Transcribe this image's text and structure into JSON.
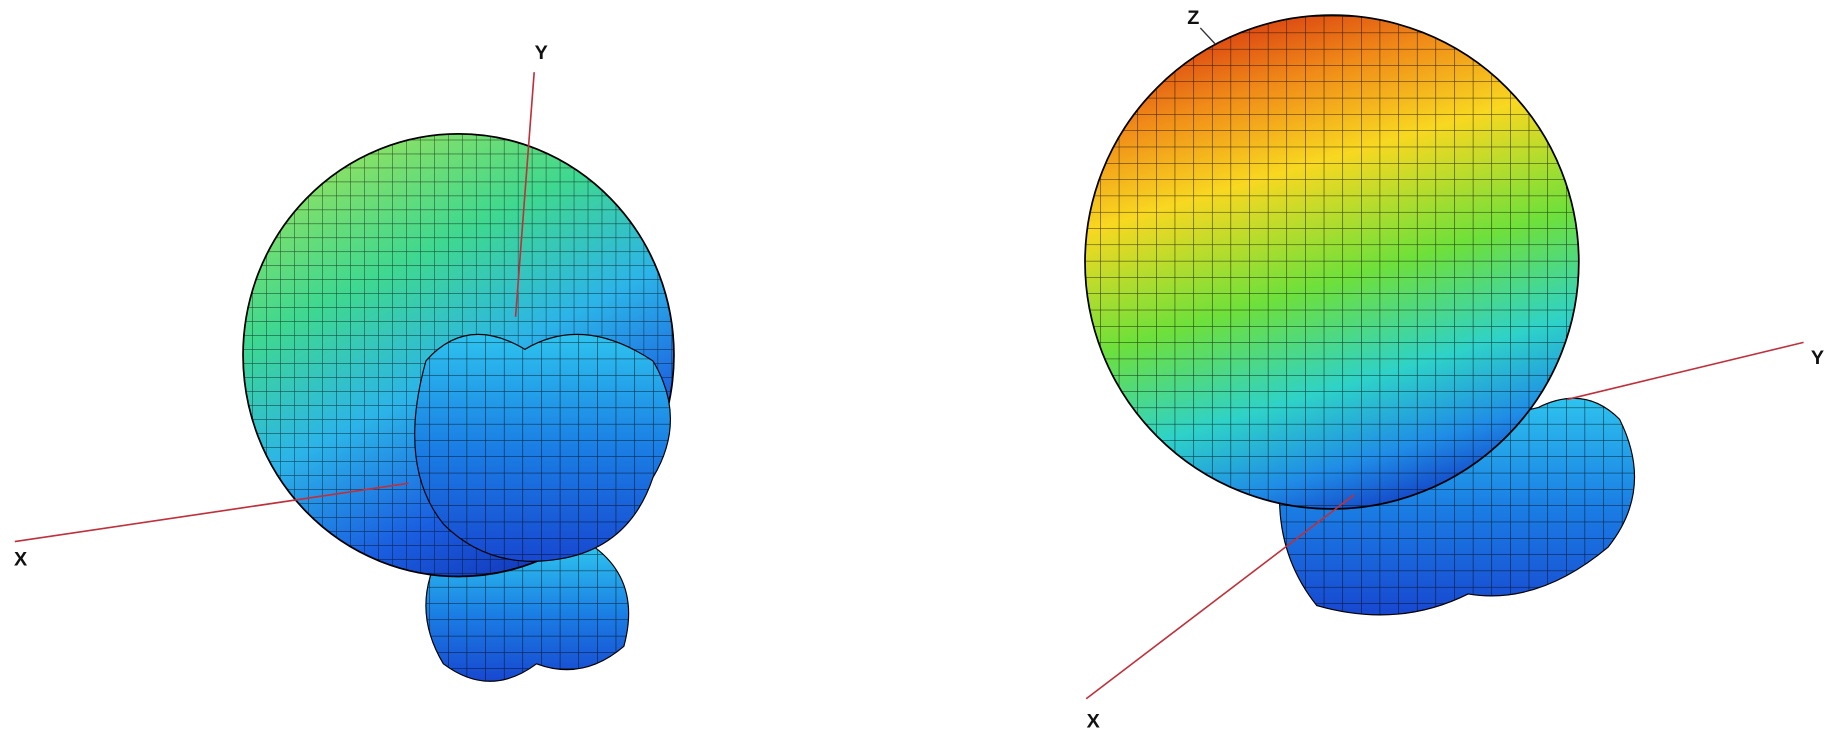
{
  "figures": [
    {
      "axis_labels": [
        "Y",
        "X"
      ]
    },
    {
      "axis_labels": [
        "Z",
        "Y",
        "X"
      ]
    }
  ]
}
